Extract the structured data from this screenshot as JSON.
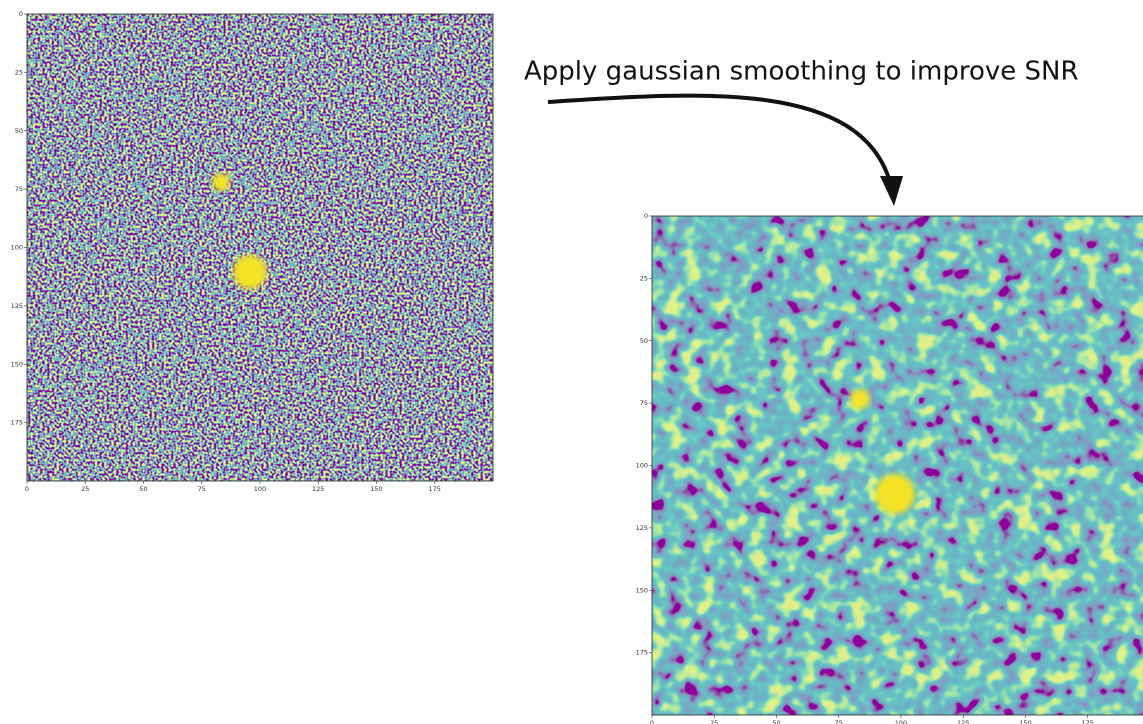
{
  "annotation": "Apply gaussian smoothing to improve SNR",
  "panels": [
    {
      "xlim": [
        0,
        200
      ],
      "ylim": [
        0,
        200
      ],
      "xticks": [
        0,
        25,
        50,
        75,
        100,
        125,
        150,
        175
      ],
      "yticks": [
        0,
        25,
        50,
        75,
        100,
        125,
        150,
        175
      ]
    },
    {
      "xlim": [
        0,
        200
      ],
      "ylim": [
        0,
        200
      ],
      "xticks": [
        0,
        25,
        50,
        75,
        100,
        125,
        150,
        175
      ],
      "yticks": [
        0,
        25,
        50,
        75,
        100,
        125,
        150,
        175
      ]
    }
  ]
}
